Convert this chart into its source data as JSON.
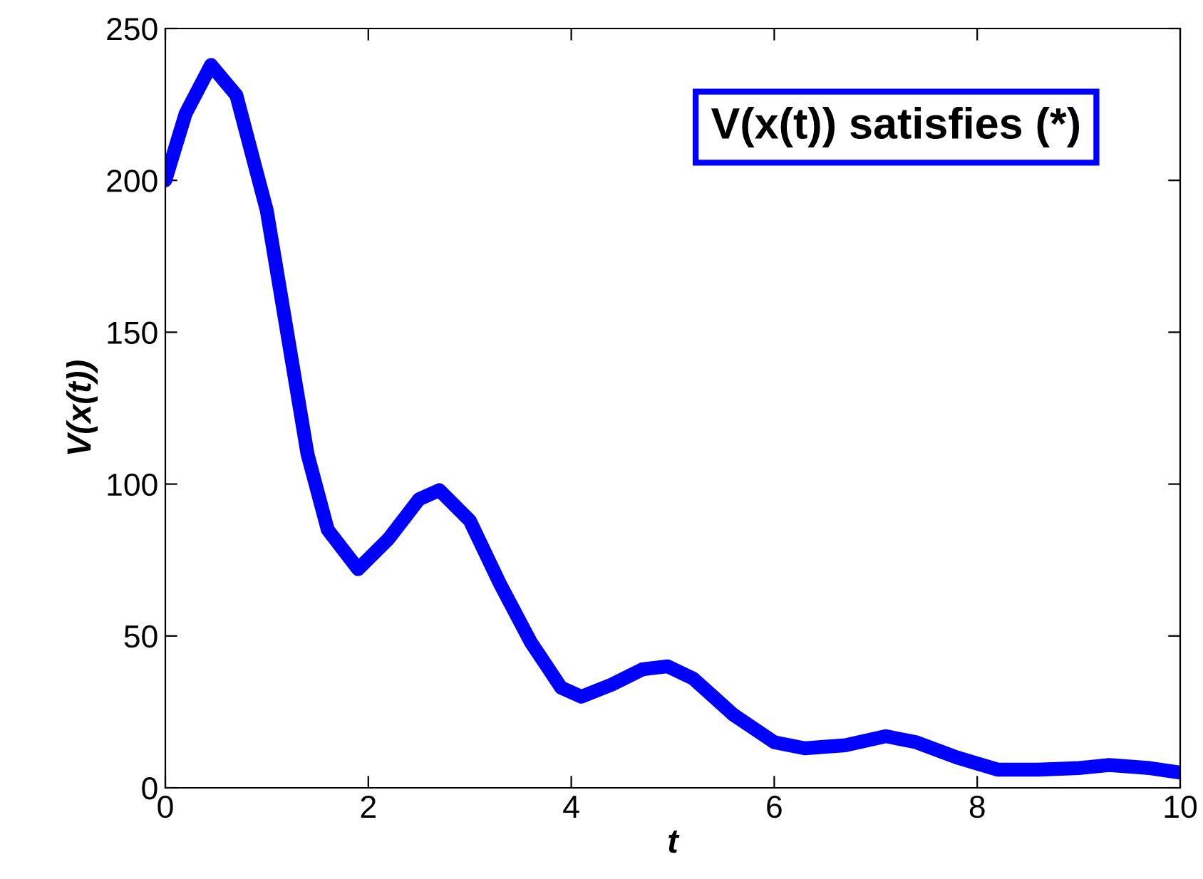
{
  "chart_data": {
    "type": "line",
    "xlabel": "t",
    "ylabel": "V(x(t))",
    "annotations": [
      "V(x(t)) satisfies (*)"
    ],
    "x": [
      0,
      0.2,
      0.45,
      0.7,
      1.0,
      1.2,
      1.4,
      1.6,
      1.9,
      2.2,
      2.5,
      2.7,
      3.0,
      3.3,
      3.6,
      3.9,
      4.1,
      4.4,
      4.7,
      4.95,
      5.2,
      5.6,
      6.0,
      6.3,
      6.7,
      7.1,
      7.4,
      7.8,
      8.2,
      8.6,
      9.0,
      9.3,
      9.7,
      10
    ],
    "series": [
      {
        "color": "#0000ff",
        "values": [
          200,
          222,
          238,
          228,
          190,
          150,
          110,
          85,
          72,
          82,
          95,
          98,
          88,
          67,
          48,
          33,
          30,
          34,
          39,
          40,
          36,
          24,
          15,
          13,
          14,
          17,
          15,
          10,
          6,
          6,
          6.5,
          7.5,
          6.5,
          5
        ]
      }
    ],
    "xlim": [
      0,
      10
    ],
    "ylim": [
      0,
      250
    ],
    "xticks": [
      0,
      2,
      4,
      6,
      8,
      10
    ],
    "yticks": [
      0,
      50,
      100,
      150,
      200,
      250
    ],
    "grid": false,
    "legend": false,
    "line_style": "solid",
    "marker": "none"
  }
}
